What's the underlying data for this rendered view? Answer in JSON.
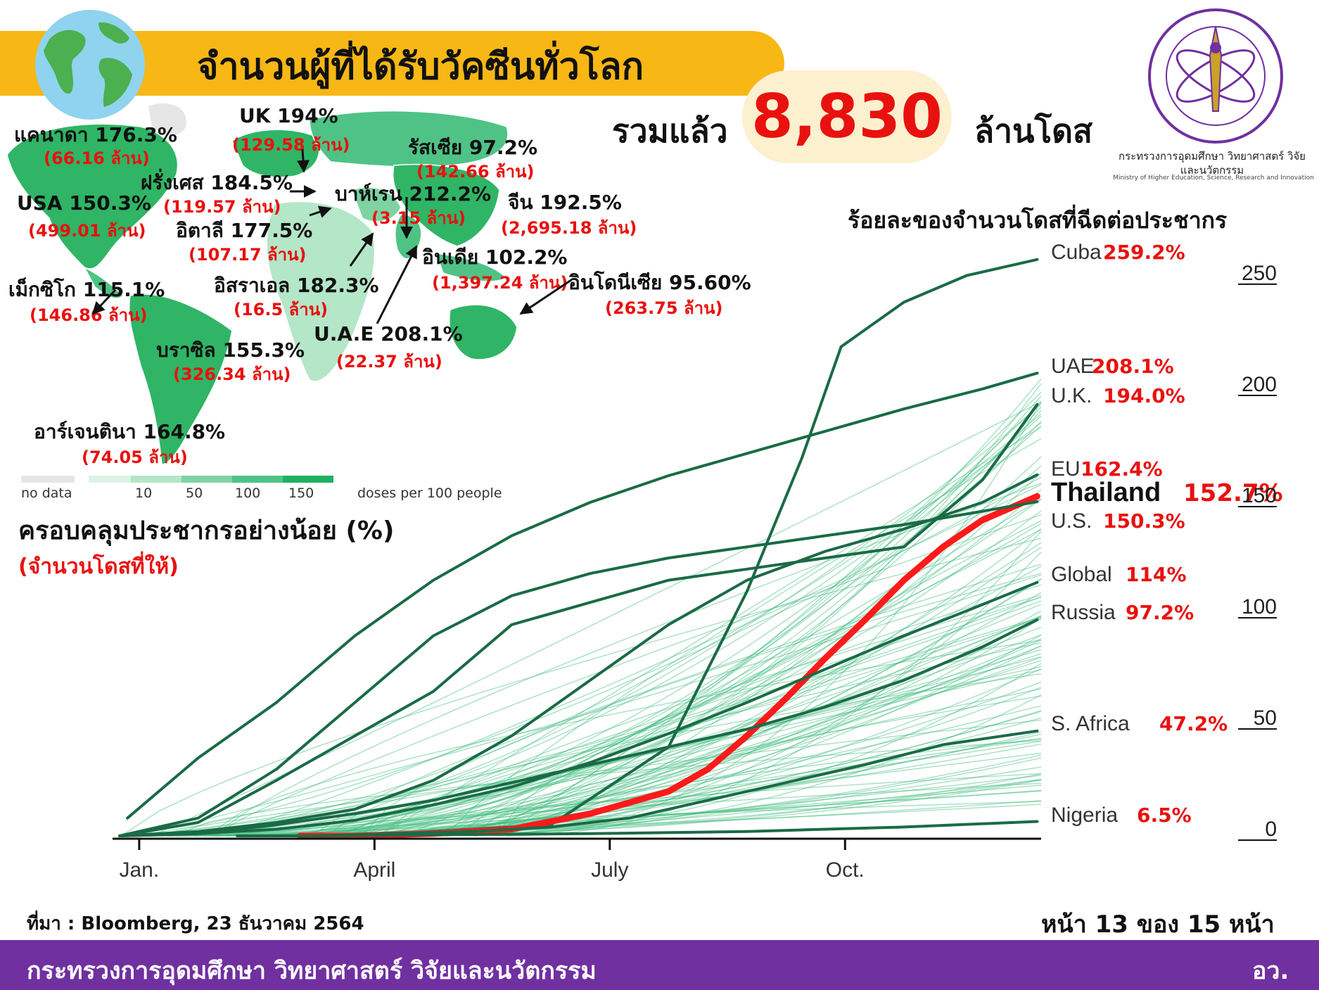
{
  "header": {
    "title": "จำนวนผู้ที่ได้รับวัคซีนทั่วโลก",
    "total_prefix": "รวมแล้ว",
    "total_value": "8,830",
    "total_suffix": "ล้านโดส"
  },
  "ministry": {
    "name_th": "กระทรวงการอุดมศึกษา วิทยาศาสตร์ วิจัยและนวัตกรรม",
    "name_en": "Ministry of Higher Education, Science, Research and Innovation"
  },
  "map": {
    "countries": [
      {
        "name": "แคนาดา 176.3%",
        "doses": "(66.16 ล้าน)"
      },
      {
        "name": "UK 194%",
        "doses": "(129.58 ล้าน)"
      },
      {
        "name": "รัสเซีย 97.2%",
        "doses": "(142.66 ล้าน)"
      },
      {
        "name": "ฝรั่งเศส 184.5%",
        "doses": "(119.57 ล้าน)"
      },
      {
        "name": "USA 150.3%",
        "doses": "(499.01 ล้าน)"
      },
      {
        "name": "บาห์เรน 212.2%",
        "doses": "(3.15 ล้าน)"
      },
      {
        "name": "จีน 192.5%",
        "doses": "(2,695.18 ล้าน)"
      },
      {
        "name": "อิตาลี 177.5%",
        "doses": "(107.17 ล้าน)"
      },
      {
        "name": "อินเดีย 102.2%",
        "doses": "(1,397.24 ล้าน)"
      },
      {
        "name": "เม็กซิโก 115.1%",
        "doses": "(146.86 ล้าน)"
      },
      {
        "name": "อิสราเอล 182.3%",
        "doses": "(16.5 ล้าน)"
      },
      {
        "name": "อินโดนีเซีย 95.60%",
        "doses": "(263.75 ล้าน)"
      },
      {
        "name": "U.A.E 208.1%",
        "doses": "(22.37 ล้าน)"
      },
      {
        "name": "บราซิล 155.3%",
        "doses": "(326.34 ล้าน)"
      },
      {
        "name": "อาร์เจนตินา 164.8%",
        "doses": "(74.05 ล้าน)"
      }
    ],
    "legend": {
      "no_data": "no data",
      "ticks": [
        "10",
        "50",
        "100",
        "150"
      ],
      "caption": "doses per 100 people",
      "colors": [
        "#e6e6e6",
        "#dcf3e6",
        "#b4e6c8",
        "#7fd3a3",
        "#4fc386",
        "#1fb062"
      ]
    }
  },
  "coverage_title": "ครอบคลุมประชากรอย่างน้อย (%)",
  "coverage_subtitle": "(จำนวนโดสที่ให้)",
  "chart_title": "ร้อยละของจำนวนโดสที่ฉีดต่อประชากร",
  "chart_data": {
    "type": "line",
    "x_ticks": [
      "Jan.",
      "April",
      "July",
      "Oct."
    ],
    "y_ticks": [
      0,
      50,
      100,
      150,
      200,
      250
    ],
    "ylim": [
      0,
      262
    ],
    "x_range_months": [
      0,
      11.75
    ],
    "series": [
      {
        "name": "Cuba",
        "value_label": "259.2%",
        "x": [
          2.2,
          3.5,
          5.5,
          7,
          8,
          8.7,
          9.2,
          10,
          10.8,
          11.7
        ],
        "y": [
          0,
          1,
          5,
          40,
          110,
          170,
          220,
          240,
          252,
          259.2
        ]
      },
      {
        "name": "UAE",
        "value_label": "208.1%",
        "x": [
          0.1,
          1,
          2,
          3,
          4,
          5,
          6,
          7,
          8,
          9,
          10,
          11,
          11.7
        ],
        "y": [
          8,
          35,
          60,
          90,
          115,
          135,
          150,
          162,
          172,
          182,
          192,
          201,
          208.1
        ]
      },
      {
        "name": "U.K.",
        "value_label": "194.0%",
        "x": [
          0,
          1,
          2,
          3,
          4,
          5,
          6,
          7,
          8,
          9,
          10,
          11,
          11.7
        ],
        "y": [
          0,
          6,
          25,
          45,
          65,
          95,
          105,
          115,
          120,
          125,
          130,
          160,
          194
        ]
      },
      {
        "name": "EU",
        "value_label": "162.4%",
        "x": [
          0,
          1,
          2,
          3,
          4,
          5,
          6,
          7,
          8,
          9,
          10,
          11,
          11.7
        ],
        "y": [
          0,
          2,
          6,
          12,
          25,
          45,
          70,
          95,
          115,
          128,
          138,
          150,
          162.4
        ]
      },
      {
        "name": "Thailand",
        "value_label": "152.7%",
        "x": [
          2.3,
          3,
          4,
          5,
          6,
          7,
          7.5,
          8,
          8.5,
          9,
          9.5,
          10,
          10.5,
          11,
          11.7
        ],
        "y": [
          0,
          0,
          1,
          3,
          10,
          20,
          30,
          45,
          62,
          80,
          97,
          115,
          130,
          142,
          152.7
        ]
      },
      {
        "name": "U.S.",
        "value_label": "150.3%",
        "x": [
          0,
          1,
          2,
          3,
          4,
          5,
          6,
          7,
          8,
          9,
          10,
          11,
          11.7
        ],
        "y": [
          0,
          8,
          30,
          60,
          90,
          108,
          118,
          125,
          130,
          135,
          140,
          146,
          150.3
        ]
      },
      {
        "name": "Global",
        "value_label": "114%",
        "x": [
          0,
          1,
          2,
          3,
          4,
          5,
          6,
          7,
          8,
          9,
          10,
          11,
          11.7
        ],
        "y": [
          0,
          1,
          3,
          7,
          14,
          22,
          33,
          46,
          60,
          75,
          90,
          104,
          114
        ]
      },
      {
        "name": "Russia",
        "value_label": "97.2%",
        "x": [
          0,
          1,
          2,
          3,
          4,
          5,
          6,
          7,
          8,
          9,
          10,
          11,
          11.7
        ],
        "y": [
          0,
          1,
          5,
          10,
          16,
          24,
          32,
          40,
          48,
          58,
          70,
          85,
          97.2
        ]
      },
      {
        "name": "S. Africa",
        "value_label": "47.2%",
        "x": [
          1.5,
          2.5,
          3.5,
          4.5,
          5.5,
          6.5,
          7.5,
          8.5,
          9.5,
          10.5,
          11.7
        ],
        "y": [
          0,
          0,
          1,
          2,
          4,
          8,
          16,
          24,
          32,
          41,
          47.2
        ]
      },
      {
        "name": "Nigeria",
        "value_label": "6.5%",
        "x": [
          2.5,
          4,
          6,
          8,
          10,
          11.7
        ],
        "y": [
          0,
          0.5,
          1,
          2,
          4,
          6.5
        ]
      }
    ],
    "colors": {
      "background_lines": "#3cba7a",
      "highlight": "#1a6b45",
      "thailand": "#ff1a1a",
      "labels": "#e8110f"
    }
  },
  "source": "ที่มา : Bloomberg, 23 ธันวาคม 2564",
  "page": "หน้า 13 ของ 15 หน้า",
  "footer": {
    "left": "กระทรวงการอุดมศึกษา วิทยาศาสตร์ วิจัยและนวัตกรรม",
    "right": "อว."
  }
}
